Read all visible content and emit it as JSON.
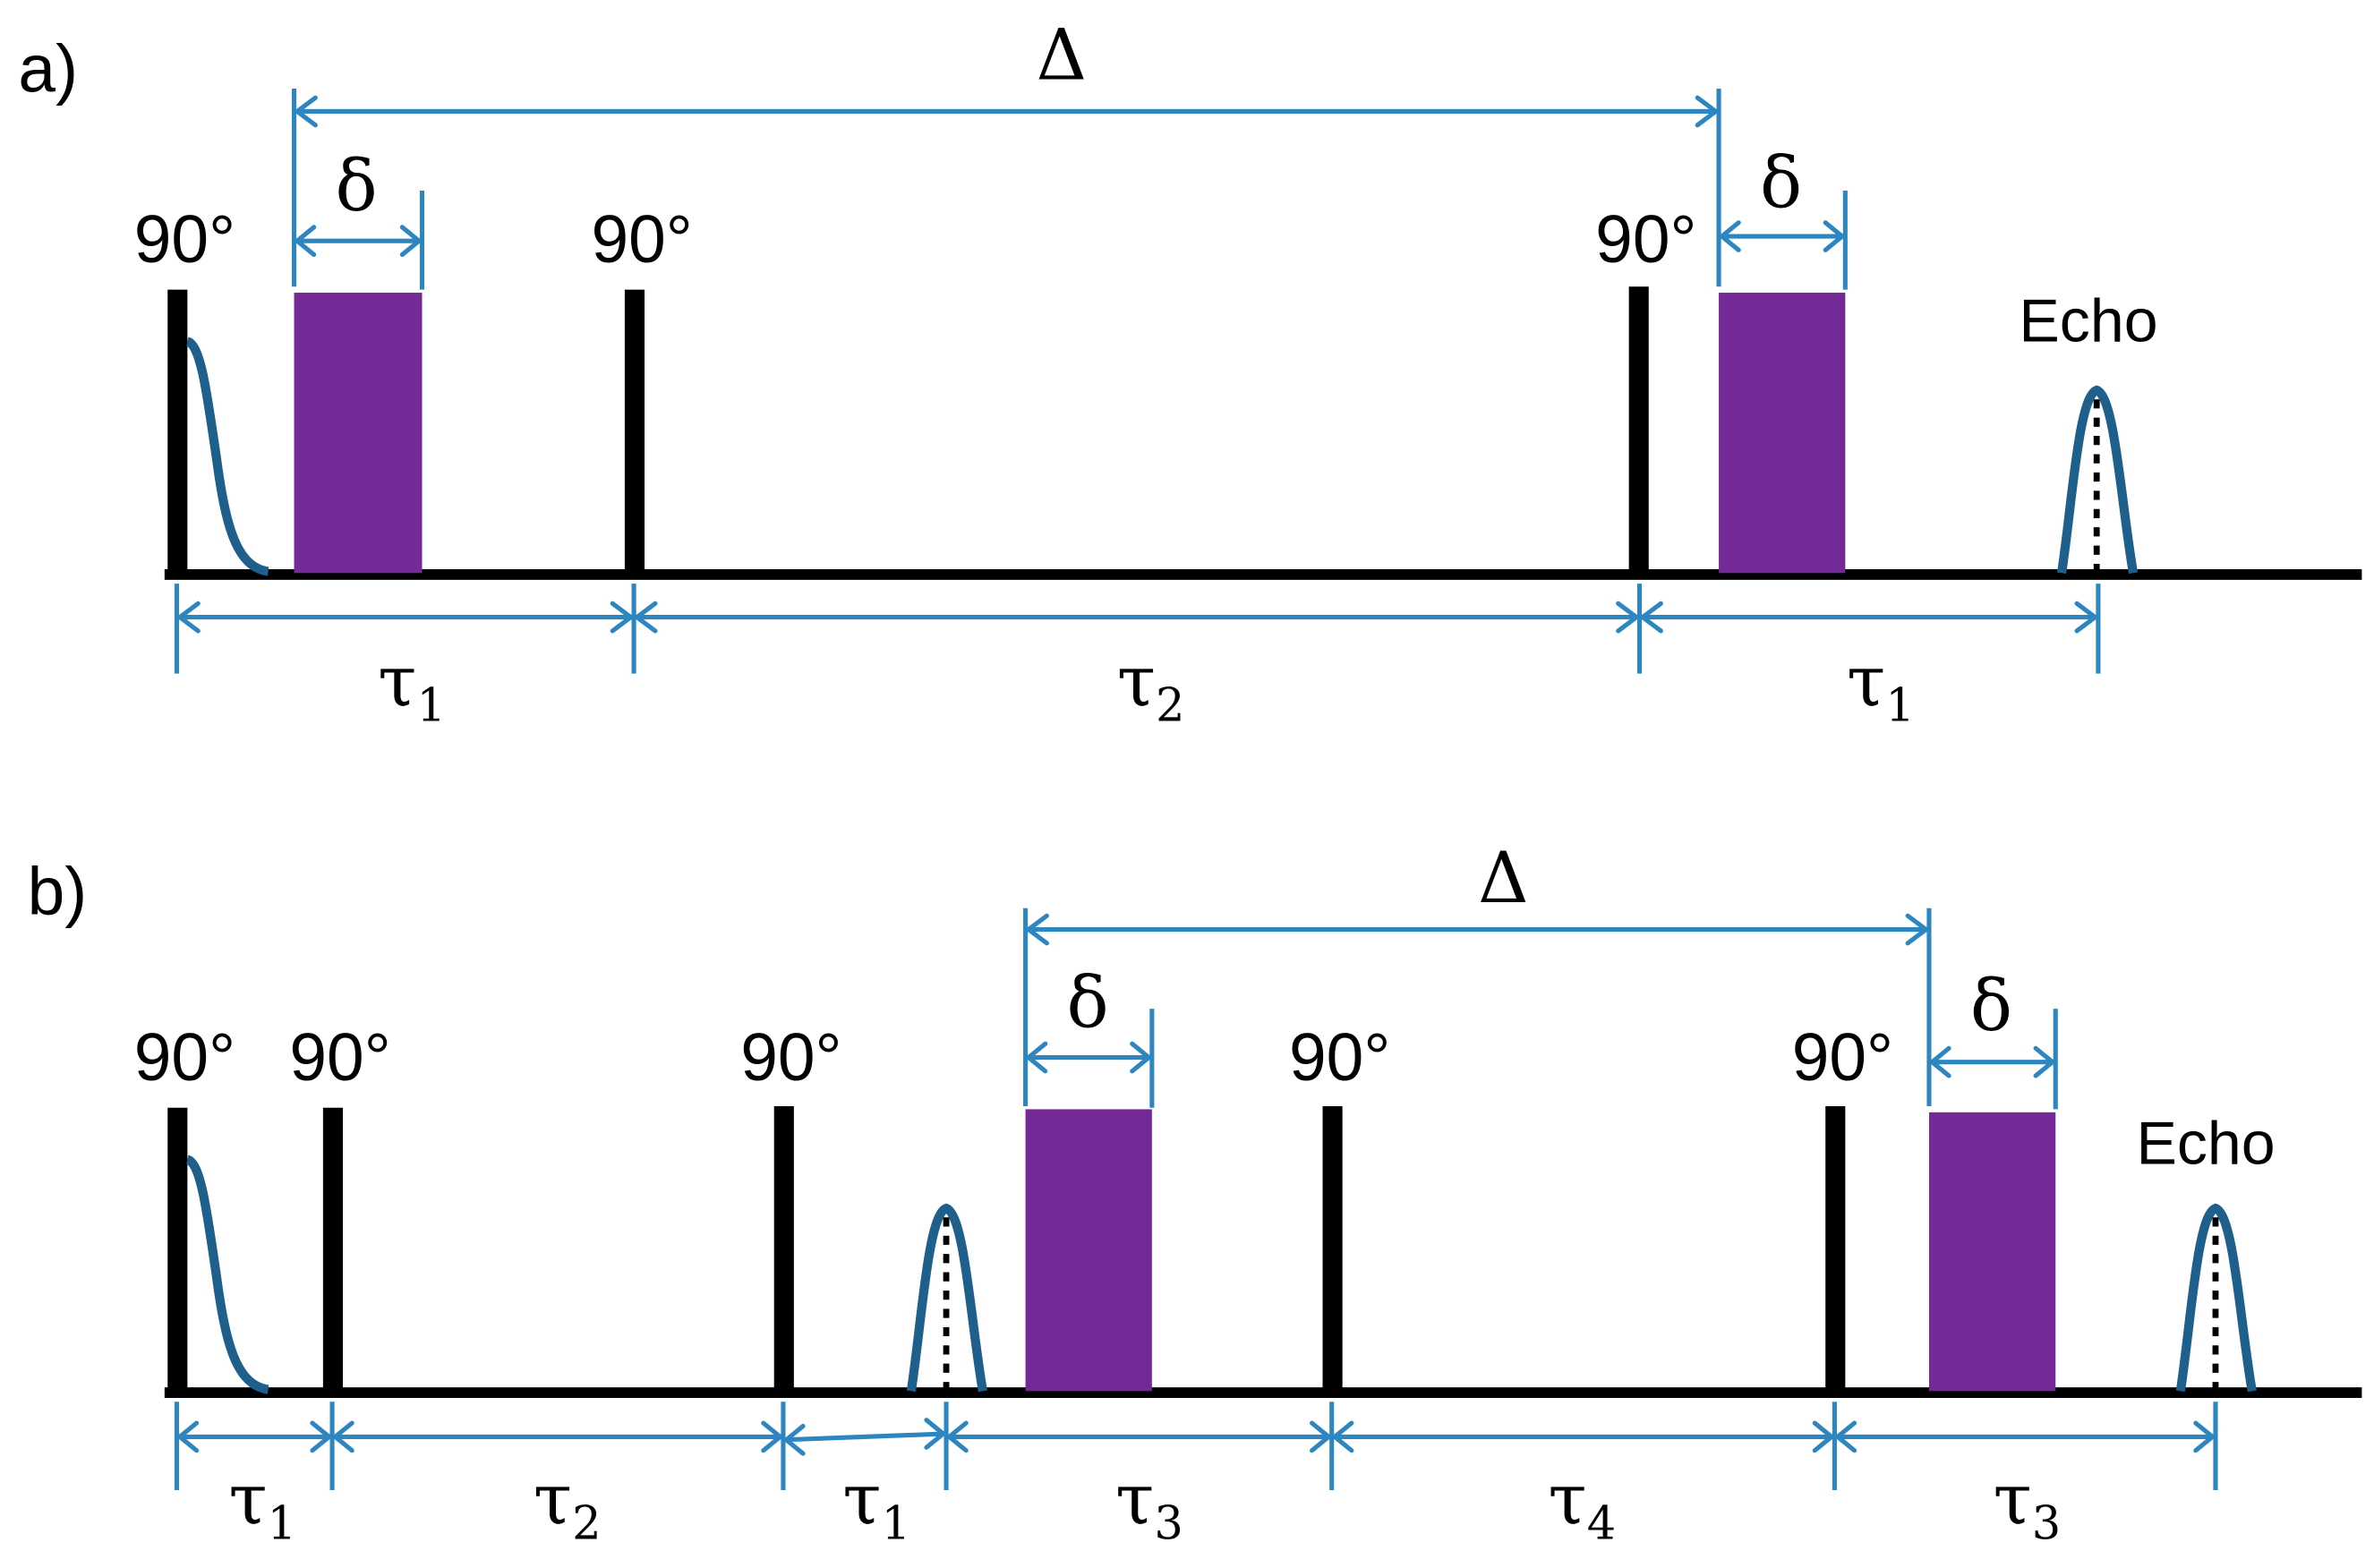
{
  "panels": [
    {
      "id": "a",
      "label": "a)",
      "pulse_label": "90°",
      "echo_label": "Echo",
      "big_delta": "Δ",
      "small_delta": "δ",
      "intervals": [
        {
          "tau": "τ",
          "sub": "1"
        },
        {
          "tau": "τ",
          "sub": "2"
        },
        {
          "tau": "τ",
          "sub": "1"
        }
      ]
    },
    {
      "id": "b",
      "label": "b)",
      "pulse_label": "90°",
      "echo_label": "Echo",
      "big_delta": "Δ",
      "small_delta": "δ",
      "intervals": [
        {
          "tau": "τ",
          "sub": "1"
        },
        {
          "tau": "τ",
          "sub": "2"
        },
        {
          "tau": "τ",
          "sub": "1"
        },
        {
          "tau": "τ",
          "sub": "3"
        },
        {
          "tau": "τ",
          "sub": "4"
        },
        {
          "tau": "τ",
          "sub": "3"
        }
      ]
    }
  ],
  "colors": {
    "gradient": "#732A96",
    "dimension": "#2E86C1",
    "signal": "#1F5F8B",
    "pulse": "#000000"
  }
}
